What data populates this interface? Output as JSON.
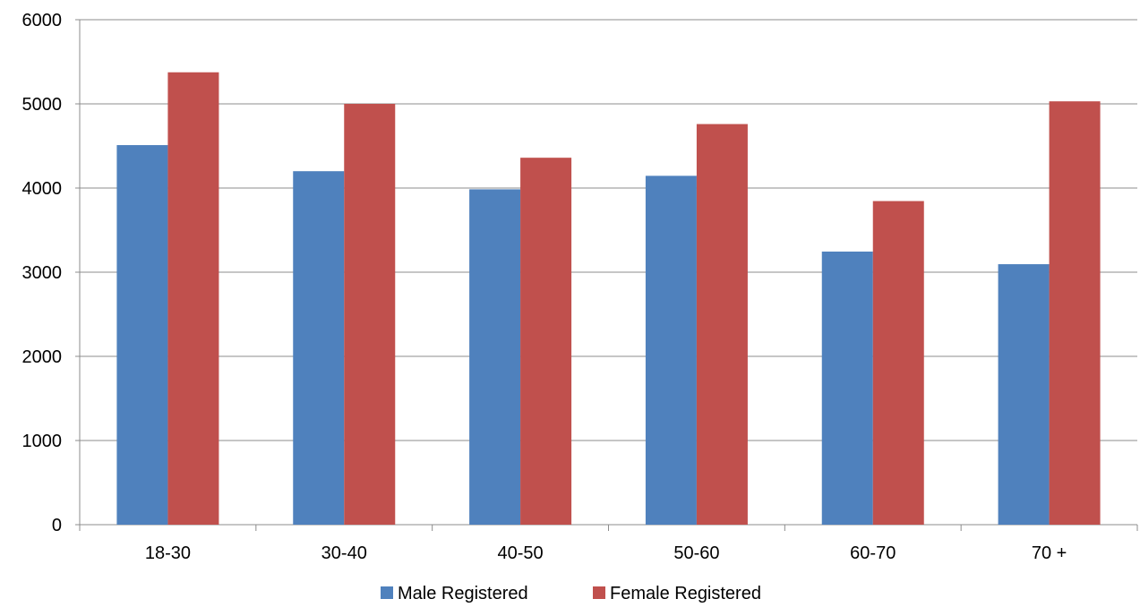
{
  "chart_data": {
    "type": "bar",
    "categories": [
      "18-30",
      "30-40",
      "40-50",
      "50-60",
      "60-70",
      "70 +"
    ],
    "series": [
      {
        "name": "Male Registered",
        "color": "#4f81bd",
        "values": [
          4510,
          4200,
          3985,
          4145,
          3245,
          3095
        ]
      },
      {
        "name": "Female Registered",
        "color": "#c0504d",
        "values": [
          5375,
          5000,
          4360,
          4760,
          3845,
          5030
        ]
      }
    ],
    "ylim": [
      0,
      6000
    ],
    "yticks": [
      0,
      1000,
      2000,
      3000,
      4000,
      5000,
      6000
    ],
    "grid": true,
    "legend_position": "bottom",
    "title": "",
    "xlabel": "",
    "ylabel": ""
  }
}
